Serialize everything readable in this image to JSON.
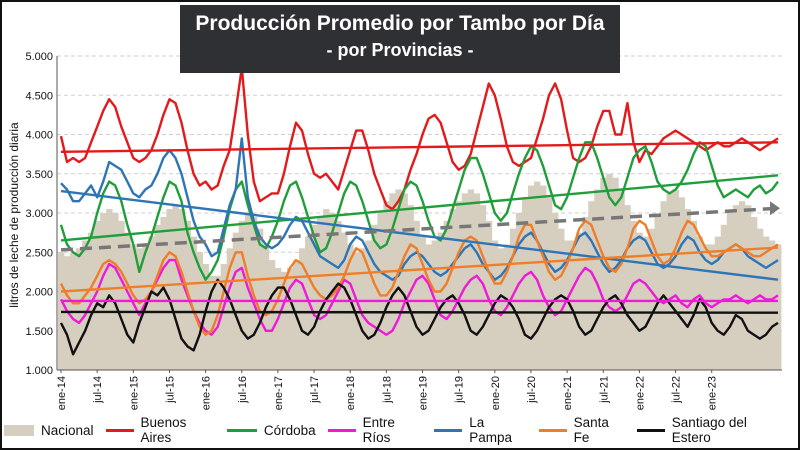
{
  "title": "Producción Promedio por Tambo por Día",
  "subtitle": "- por Provincias -",
  "chart_data": {
    "type": "line",
    "ylabel": "litros de leche de producción diaria",
    "ylim": [
      1000,
      5000
    ],
    "yticks": [
      "1.000",
      "1.500",
      "2.000",
      "2.500",
      "3.000",
      "3.500",
      "4.000",
      "4.500",
      "5.000"
    ],
    "xlabels": [
      "ene-14",
      "jul-14",
      "ene-15",
      "jul-15",
      "ene-16",
      "jul-16",
      "ene-17",
      "jul-17",
      "ene-18",
      "jul-18",
      "ene-19",
      "jul-19",
      "ene-20",
      "jul-20",
      "ene-21",
      "jul-21",
      "ene-22",
      "jul-22",
      "ene-23"
    ],
    "grid": true,
    "legend_position": "bottom",
    "series": [
      {
        "name": "Nacional",
        "kind": "area",
        "color": "#d6cfbf",
        "values": [
          2500,
          2450,
          2500,
          2550,
          2650,
          2750,
          2900,
          3000,
          3050,
          3000,
          2900,
          2750,
          2600,
          2550,
          2600,
          2700,
          2850,
          2950,
          3050,
          3100,
          3050,
          2900,
          2700,
          2500,
          2350,
          2200,
          2200,
          2350,
          2550,
          2750,
          2900,
          3000,
          2950,
          2800,
          2600,
          2400,
          2300,
          2250,
          2300,
          2400,
          2550,
          2700,
          2850,
          2950,
          3050,
          3000,
          2900,
          2750,
          2600,
          2500,
          2550,
          2650,
          2850,
          3000,
          3150,
          3250,
          3300,
          3250,
          3100,
          2900,
          2700,
          2600,
          2650,
          2750,
          2900,
          3050,
          3150,
          3250,
          3300,
          3250,
          3100,
          2900,
          2650,
          2550,
          2600,
          2800,
          3000,
          3200,
          3350,
          3400,
          3350,
          3200,
          3000,
          2800,
          2650,
          2650,
          2750,
          2950,
          3150,
          3300,
          3450,
          3500,
          3450,
          3300,
          3100,
          2900,
          2750,
          2700,
          2800,
          2950,
          3150,
          3250,
          3300,
          3200,
          3050,
          2900,
          2700,
          2600,
          2600,
          2700,
          2850,
          3000,
          3100,
          3150,
          3100,
          2950,
          2800,
          2700,
          2650,
          2600
        ]
      },
      {
        "name": "Buenos Aires",
        "kind": "line",
        "color": "#e31a1c",
        "values": [
          3980,
          3650,
          3700,
          3650,
          3700,
          3900,
          4100,
          4300,
          4450,
          4350,
          4100,
          3900,
          3700,
          3650,
          3700,
          3800,
          4000,
          4250,
          4450,
          4400,
          4150,
          3800,
          3500,
          3350,
          3400,
          3300,
          3350,
          3600,
          3800,
          4300,
          4850,
          4000,
          3400,
          3150,
          3200,
          3250,
          3250,
          3500,
          3850,
          4150,
          4050,
          3750,
          3500,
          3450,
          3500,
          3400,
          3300,
          3550,
          3800,
          4050,
          4050,
          3800,
          3500,
          3300,
          3100,
          3050,
          3150,
          3300,
          3550,
          3750,
          4000,
          4200,
          4250,
          4150,
          3900,
          3650,
          3550,
          3600,
          3750,
          4050,
          4350,
          4650,
          4500,
          4200,
          3850,
          3650,
          3600,
          3650,
          3700,
          3950,
          4200,
          4500,
          4650,
          4450,
          4050,
          3700,
          3650,
          3700,
          3850,
          4100,
          4300,
          4300,
          4000,
          4000,
          4400,
          3900,
          3650,
          3800,
          3750,
          3850,
          3950,
          4000,
          4050,
          4000,
          3950,
          3900,
          3850,
          3800,
          3850,
          3900,
          3850,
          3850,
          3900,
          3950,
          3900,
          3850,
          3800,
          3850,
          3900,
          3950
        ]
      },
      {
        "name": "Córdoba",
        "kind": "line",
        "color": "#1f9e3a",
        "values": [
          2850,
          2600,
          2500,
          2450,
          2550,
          2700,
          3000,
          3250,
          3400,
          3350,
          3150,
          2850,
          2600,
          2250,
          2500,
          2700,
          2950,
          3200,
          3400,
          3350,
          3150,
          2750,
          2500,
          2300,
          2150,
          2250,
          2400,
          2700,
          3050,
          3300,
          3400,
          3100,
          2850,
          2600,
          2550,
          2700,
          2900,
          3150,
          3350,
          3400,
          3200,
          2950,
          2700,
          2500,
          2550,
          2750,
          3000,
          3250,
          3400,
          3350,
          3150,
          2900,
          2650,
          2550,
          2600,
          2800,
          3050,
          3300,
          3400,
          3350,
          3150,
          2900,
          2700,
          2650,
          2800,
          3050,
          3300,
          3550,
          3700,
          3700,
          3500,
          3250,
          3000,
          2900,
          3000,
          3250,
          3500,
          3700,
          3850,
          3800,
          3600,
          3350,
          3100,
          3050,
          3200,
          3450,
          3700,
          3900,
          3900,
          3700,
          3450,
          3200,
          3100,
          3200,
          3450,
          3700,
          3800,
          3850,
          3650,
          3400,
          3300,
          3250,
          3300,
          3400,
          3550,
          3750,
          3900,
          3850,
          3600,
          3350,
          3200,
          3250,
          3300,
          3250,
          3200,
          3300,
          3350,
          3250,
          3300,
          3400
        ]
      },
      {
        "name": "Entre Ríos",
        "kind": "line",
        "color": "#ee1ad8",
        "values": [
          1900,
          1750,
          1650,
          1600,
          1700,
          1850,
          2000,
          2200,
          2350,
          2300,
          2150,
          2000,
          1850,
          1700,
          1850,
          2000,
          2150,
          2300,
          2400,
          2400,
          2150,
          1950,
          1750,
          1600,
          1500,
          1450,
          1550,
          1800,
          2050,
          2250,
          2300,
          2050,
          1850,
          1650,
          1500,
          1500,
          1650,
          1850,
          2050,
          2150,
          2100,
          1900,
          1700,
          1650,
          1700,
          1850,
          2000,
          2150,
          2100,
          1900,
          1700,
          1600,
          1550,
          1500,
          1450,
          1500,
          1650,
          1850,
          2000,
          2150,
          2200,
          2100,
          1900,
          1700,
          1650,
          1750,
          1900,
          2050,
          2150,
          2200,
          2100,
          1900,
          1750,
          1700,
          1800,
          1950,
          2100,
          2200,
          2250,
          2150,
          1950,
          1800,
          1700,
          1750,
          1900,
          2050,
          2200,
          2300,
          2250,
          2100,
          1900,
          1800,
          1750,
          1800,
          1950,
          2100,
          2150,
          2100,
          2000,
          1900,
          1850,
          1900,
          1950,
          1850,
          1800,
          1900,
          1950,
          1850,
          1800,
          1850,
          1900,
          1900,
          1950,
          1900,
          1850,
          1900,
          1950,
          1900,
          1900,
          1950
        ]
      },
      {
        "name": "La Pampa",
        "kind": "line",
        "color": "#2e75b6",
        "values": [
          3380,
          3300,
          3150,
          3150,
          3250,
          3350,
          3200,
          3400,
          3650,
          3600,
          3550,
          3400,
          3250,
          3200,
          3300,
          3350,
          3500,
          3700,
          3800,
          3700,
          3500,
          3200,
          2900,
          2700,
          2600,
          2450,
          2500,
          2800,
          3100,
          3300,
          3950,
          3200,
          2900,
          2700,
          2600,
          2550,
          2600,
          2700,
          2850,
          2950,
          2900,
          2750,
          2600,
          2450,
          2400,
          2350,
          2300,
          2400,
          2600,
          2700,
          2650,
          2500,
          2350,
          2250,
          2200,
          2150,
          2200,
          2350,
          2450,
          2500,
          2450,
          2350,
          2250,
          2200,
          2250,
          2350,
          2450,
          2550,
          2600,
          2500,
          2350,
          2250,
          2150,
          2200,
          2300,
          2450,
          2600,
          2700,
          2750,
          2650,
          2500,
          2350,
          2250,
          2300,
          2400,
          2550,
          2700,
          2750,
          2650,
          2500,
          2350,
          2250,
          2300,
          2400,
          2550,
          2650,
          2700,
          2650,
          2500,
          2350,
          2300,
          2350,
          2450,
          2600,
          2700,
          2650,
          2500,
          2400,
          2350,
          2400,
          2500,
          2550,
          2600,
          2550,
          2450,
          2400,
          2350,
          2300,
          2350,
          2400
        ]
      },
      {
        "name": "Santa Fe",
        "kind": "line",
        "color": "#f07d28",
        "values": [
          2100,
          1950,
          1850,
          1850,
          1950,
          2050,
          2200,
          2350,
          2400,
          2350,
          2250,
          2100,
          1950,
          1850,
          1900,
          2000,
          2200,
          2400,
          2500,
          2450,
          2250,
          2000,
          1750,
          1550,
          1450,
          1500,
          1700,
          2000,
          2300,
          2500,
          2500,
          2200,
          1950,
          1750,
          1700,
          1750,
          1900,
          2100,
          2300,
          2400,
          2350,
          2200,
          2050,
          1950,
          1900,
          1950,
          2050,
          2200,
          2400,
          2550,
          2500,
          2300,
          2100,
          1950,
          1950,
          2050,
          2250,
          2450,
          2600,
          2550,
          2350,
          2150,
          2000,
          2000,
          2100,
          2300,
          2500,
          2650,
          2700,
          2650,
          2450,
          2250,
          2100,
          2100,
          2250,
          2450,
          2700,
          2850,
          2850,
          2650,
          2450,
          2250,
          2150,
          2200,
          2350,
          2550,
          2800,
          2900,
          2850,
          2650,
          2450,
          2300,
          2250,
          2350,
          2550,
          2800,
          2900,
          2850,
          2650,
          2450,
          2350,
          2400,
          2550,
          2750,
          2900,
          2850,
          2700,
          2550,
          2450,
          2450,
          2500,
          2550,
          2600,
          2550,
          2500,
          2450,
          2450,
          2500,
          2550,
          2600
        ]
      },
      {
        "name": "Santiago del Estero",
        "kind": "line",
        "color": "#111111",
        "values": [
          1600,
          1450,
          1200,
          1350,
          1500,
          1700,
          1850,
          1800,
          1950,
          1850,
          1650,
          1450,
          1350,
          1600,
          1800,
          2000,
          1950,
          2050,
          1900,
          1650,
          1400,
          1300,
          1250,
          1450,
          1750,
          2000,
          2150,
          2050,
          1900,
          1700,
          1500,
          1400,
          1450,
          1600,
          1800,
          1950,
          2050,
          2050,
          1900,
          1700,
          1500,
          1450,
          1550,
          1750,
          1900,
          2000,
          2100,
          2050,
          1900,
          1700,
          1500,
          1400,
          1450,
          1600,
          1800,
          1950,
          2050,
          1950,
          1750,
          1550,
          1450,
          1500,
          1650,
          1800,
          1900,
          1950,
          1850,
          1700,
          1500,
          1450,
          1550,
          1700,
          1850,
          1950,
          1900,
          1800,
          1650,
          1450,
          1400,
          1500,
          1650,
          1800,
          1900,
          1950,
          1900,
          1750,
          1550,
          1450,
          1500,
          1650,
          1800,
          1900,
          1950,
          1850,
          1700,
          1600,
          1500,
          1550,
          1700,
          1850,
          1950,
          1850,
          1750,
          1650,
          1550,
          1700,
          1900,
          1800,
          1600,
          1500,
          1450,
          1550,
          1700,
          1650,
          1500,
          1450,
          1400,
          1450,
          1550,
          1600
        ]
      }
    ],
    "trendlines": [
      {
        "series": "Buenos Aires",
        "color": "#e31a1c",
        "style": "solid",
        "start": 3780,
        "end": 3900
      },
      {
        "series": "Córdoba",
        "color": "#1f9e3a",
        "style": "solid",
        "start": 2650,
        "end": 3480
      },
      {
        "series": "La Pampa",
        "color": "#2e75b6",
        "style": "solid",
        "start": 3280,
        "end": 2150
      },
      {
        "series": "Santa Fe",
        "color": "#f07d28",
        "style": "solid",
        "start": 2000,
        "end": 2560
      },
      {
        "series": "Entre Ríos",
        "color": "#ee1ad8",
        "style": "solid",
        "start": 1880,
        "end": 1880
      },
      {
        "series": "Santiago del Estero",
        "color": "#111111",
        "style": "solid",
        "start": 1740,
        "end": 1730
      },
      {
        "series": "Nacional",
        "color": "#777777",
        "style": "dashed",
        "start": 2530,
        "end": 3060
      }
    ]
  }
}
